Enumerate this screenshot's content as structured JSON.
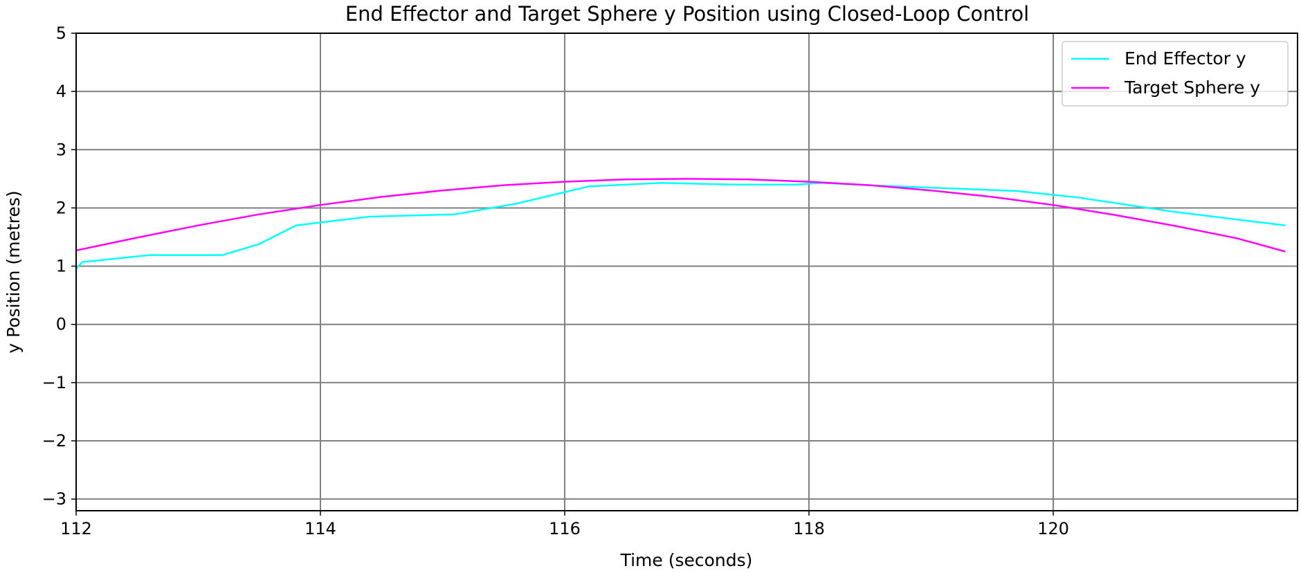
{
  "chart_data": {
    "type": "line",
    "title": "End Effector and Target Sphere y Position using Closed-Loop Control",
    "xlabel": "Time (seconds)",
    "ylabel": "y Position (metres)",
    "xlim": [
      112,
      122
    ],
    "ylim": [
      -3.2,
      5
    ],
    "xticks": [
      112,
      114,
      116,
      118,
      120
    ],
    "yticks": [
      -3,
      -2,
      -1,
      0,
      1,
      2,
      3,
      4,
      5
    ],
    "xtick_labels": [
      "112",
      "114",
      "116",
      "118",
      "120"
    ],
    "ytick_labels": [
      "−3",
      "−2",
      "−1",
      "0",
      "1",
      "2",
      "3",
      "4",
      "5"
    ],
    "grid": true,
    "legend_position": "top-right",
    "series": [
      {
        "name": "End Effector y",
        "color": "#00ffff",
        "x": [
          112.0,
          112.05,
          112.6,
          113.2,
          113.5,
          113.8,
          114.4,
          115.1,
          115.6,
          116.2,
          116.8,
          117.4,
          117.9,
          118.1,
          118.6,
          119.7,
          120.2,
          121.0,
          121.9
        ],
        "y": [
          0.95,
          1.07,
          1.19,
          1.19,
          1.38,
          1.7,
          1.85,
          1.89,
          2.07,
          2.37,
          2.43,
          2.4,
          2.4,
          2.43,
          2.38,
          2.29,
          2.18,
          1.93,
          1.7
        ]
      },
      {
        "name": "Target Sphere y",
        "color": "#ff00ff",
        "x": [
          112.0,
          112.5,
          113.0,
          113.5,
          114.0,
          114.5,
          115.0,
          115.5,
          116.0,
          116.5,
          117.0,
          117.5,
          118.0,
          118.5,
          119.0,
          119.5,
          120.0,
          120.5,
          121.0,
          121.5,
          121.9
        ],
        "y": [
          1.27,
          1.49,
          1.7,
          1.89,
          2.05,
          2.19,
          2.3,
          2.39,
          2.45,
          2.49,
          2.5,
          2.49,
          2.45,
          2.39,
          2.3,
          2.19,
          2.05,
          1.88,
          1.69,
          1.48,
          1.25
        ]
      }
    ]
  }
}
